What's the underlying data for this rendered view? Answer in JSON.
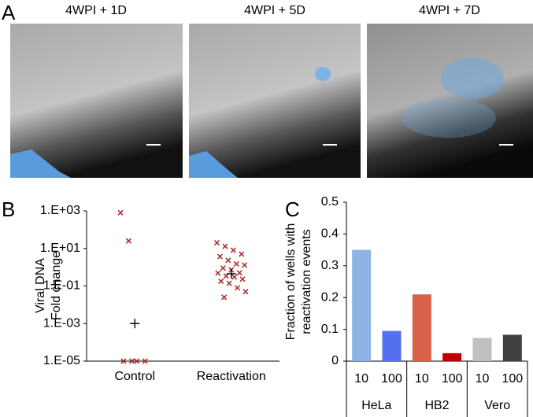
{
  "panel_labels": [
    "A",
    "B",
    "C"
  ],
  "images": [
    {
      "title": "4WPI + 1D"
    },
    {
      "title": "4WPI + 5D"
    },
    {
      "title": "4WPI + 7D"
    }
  ],
  "chart_data": [
    {
      "type": "strip",
      "y_label": [
        "Viral DNA",
        "Fold change"
      ],
      "log_y": true,
      "ylim": [
        1e-05,
        1000
      ],
      "yticks": [
        {
          "value": 1000,
          "label": "1.E+03"
        },
        {
          "value": 10,
          "label": "1.E+01"
        },
        {
          "value": 0.1,
          "label": "1.E-01"
        },
        {
          "value": 0.001,
          "label": "1.E-03"
        },
        {
          "value": 1e-05,
          "label": "1.E-05"
        }
      ],
      "categories": [
        "Control",
        "Reactivation"
      ],
      "values": [
        [
          800,
          25,
          1e-05,
          1e-05,
          1e-05,
          1e-05
        ],
        [
          20,
          13,
          8,
          5,
          3.7,
          2.3,
          1.5,
          1.3,
          0.9,
          0.72,
          0.5,
          0.48,
          0.34,
          0.3,
          0.23,
          0.18,
          0.14,
          0.08,
          0.05,
          0.025
        ]
      ],
      "means": [
        0.001,
        0.45
      ],
      "color": "#b03030",
      "mean_color": "#000000"
    },
    {
      "type": "bar",
      "y_label": [
        "Fraction of wells with",
        "reactivation events"
      ],
      "ylim": [
        0,
        0.5
      ],
      "yticks": [
        0,
        0.1,
        0.2,
        0.3,
        0.4,
        0.5
      ],
      "categories": [
        "10",
        "100",
        "10",
        "100",
        "10",
        "100"
      ],
      "groups": [
        "HeLa",
        "HB2",
        "Vero"
      ],
      "values": [
        0.35,
        0.095,
        0.21,
        0.025,
        0.073,
        0.083
      ],
      "colors": [
        "#8db3e2",
        "#5470f0",
        "#d9634a",
        "#c00000",
        "#bfbfbf",
        "#404040"
      ]
    }
  ]
}
